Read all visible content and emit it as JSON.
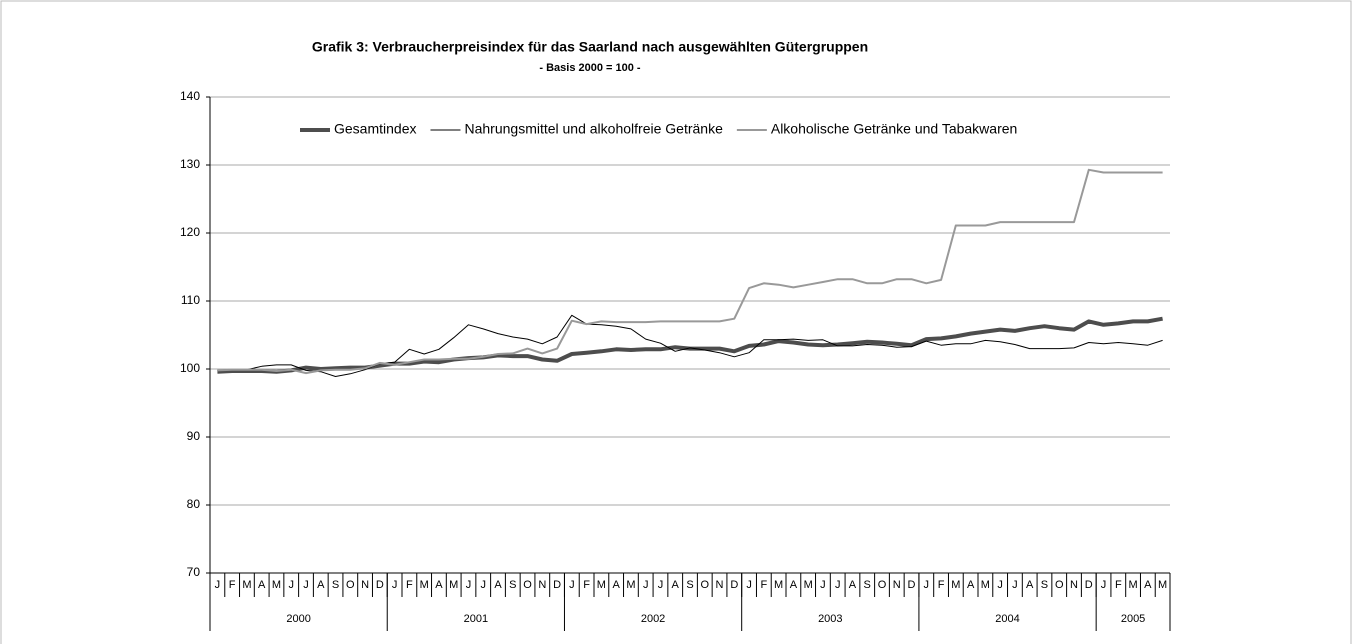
{
  "chart_data": {
    "type": "line",
    "title": "Grafik 3: Verbraucherpreisindex für das Saarland nach ausgewählten Gütergruppen",
    "subtitle": "- Basis 2000 = 100 -",
    "categories": [
      "J",
      "F",
      "M",
      "A",
      "M",
      "J",
      "J",
      "A",
      "S",
      "O",
      "N",
      "D",
      "J",
      "F",
      "M",
      "A",
      "M",
      "J",
      "J",
      "A",
      "S",
      "O",
      "N",
      "D",
      "J",
      "F",
      "M",
      "A",
      "M",
      "J",
      "J",
      "A",
      "S",
      "O",
      "N",
      "D",
      "J",
      "F",
      "M",
      "A",
      "M",
      "J",
      "J",
      "A",
      "S",
      "O",
      "N",
      "D",
      "J",
      "F",
      "M",
      "A",
      "M",
      "J",
      "J",
      "A",
      "S",
      "O",
      "N",
      "D",
      "J",
      "F",
      "M",
      "A",
      "M"
    ],
    "years": [
      "2000",
      "2001",
      "2002",
      "2003",
      "2004",
      "2005"
    ],
    "ylim": [
      70,
      140
    ],
    "yticks": [
      70,
      80,
      90,
      100,
      110,
      120,
      130,
      140
    ],
    "grid": true,
    "series": [
      {
        "name": "Gesamtindex",
        "color": "#4d4d4d",
        "values": [
          99.6,
          99.7,
          99.7,
          99.7,
          99.6,
          99.8,
          100.2,
          100.0,
          100.1,
          100.2,
          100.2,
          100.5,
          100.8,
          100.8,
          101.1,
          101.0,
          101.4,
          101.6,
          101.7,
          102.0,
          101.9,
          101.9,
          101.4,
          101.2,
          102.2,
          102.4,
          102.6,
          102.9,
          102.8,
          102.9,
          102.9,
          103.2,
          103.0,
          103.0,
          103.0,
          102.6,
          103.4,
          103.6,
          104.1,
          103.9,
          103.6,
          103.5,
          103.6,
          103.8,
          104.0,
          103.9,
          103.7,
          103.5,
          104.4,
          104.5,
          104.8,
          105.2,
          105.5,
          105.8,
          105.6,
          106.0,
          106.3,
          106.0,
          105.8,
          107.0,
          106.5,
          106.7,
          107.0,
          107.0,
          107.4
        ]
      },
      {
        "name": "Nahrungsmittel und alkoholfreie Getränke",
        "color": "#000000",
        "values": [
          99.8,
          99.9,
          99.9,
          100.4,
          100.6,
          100.6,
          99.8,
          99.6,
          98.9,
          99.3,
          99.9,
          100.8,
          101.0,
          102.9,
          102.2,
          102.9,
          104.6,
          106.5,
          105.9,
          105.2,
          104.7,
          104.4,
          103.7,
          104.7,
          107.9,
          106.6,
          106.5,
          106.3,
          105.9,
          104.4,
          103.8,
          102.6,
          103.1,
          102.8,
          102.4,
          101.8,
          102.4,
          104.3,
          104.3,
          104.4,
          104.2,
          104.3,
          103.4,
          103.4,
          103.6,
          103.5,
          103.2,
          103.3,
          104.1,
          103.5,
          103.7,
          103.7,
          104.2,
          104.0,
          103.6,
          103.0,
          103.0,
          103.0,
          103.1,
          103.9,
          103.7,
          103.9,
          103.7,
          103.5,
          104.2
        ]
      },
      {
        "name": "Alkoholische Getränke und Tabakwaren",
        "color": "#999999",
        "values": [
          99.8,
          99.9,
          99.9,
          99.9,
          99.7,
          99.9,
          99.4,
          99.8,
          99.9,
          99.9,
          100.1,
          100.9,
          100.6,
          101.0,
          101.4,
          101.4,
          101.5,
          101.5,
          101.8,
          102.2,
          102.3,
          103.0,
          102.3,
          103.0,
          107.1,
          106.6,
          107.0,
          106.9,
          106.9,
          106.9,
          107.0,
          107.0,
          107.0,
          107.0,
          107.0,
          107.4,
          111.9,
          112.6,
          112.4,
          112.0,
          112.4,
          112.8,
          113.2,
          113.2,
          112.6,
          112.6,
          113.2,
          113.2,
          112.6,
          113.1,
          121.1,
          121.1,
          121.1,
          121.6,
          121.6,
          121.6,
          121.6,
          121.6,
          121.6,
          129.3,
          128.9,
          128.9,
          128.9,
          128.9,
          128.9
        ]
      }
    ]
  }
}
